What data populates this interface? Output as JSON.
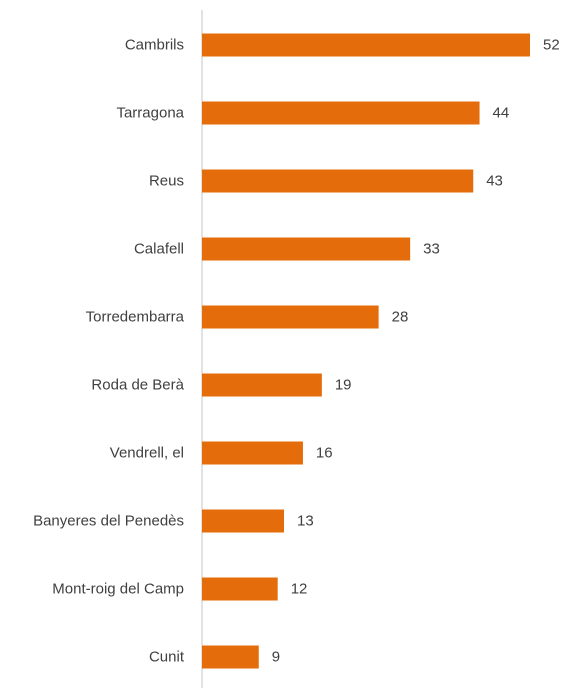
{
  "chart_data": {
    "type": "bar",
    "orientation": "horizontal",
    "title": "",
    "xlabel": "",
    "ylabel": "",
    "categories": [
      "Cambrils",
      "Tarragona",
      "Reus",
      "Calafell",
      "Torredembarra",
      "Roda de Berà",
      "Vendrell, el",
      "Banyeres del Penedès",
      "Mont-roig del Camp",
      "Cunit"
    ],
    "values": [
      52,
      44,
      43,
      33,
      28,
      19,
      16,
      13,
      12,
      9
    ],
    "xlim": [
      0,
      52
    ],
    "grid": false,
    "legend": "none",
    "colors": {
      "bar": "#E46C0A",
      "axis": "#d9d9d9",
      "text": "#404040"
    }
  }
}
